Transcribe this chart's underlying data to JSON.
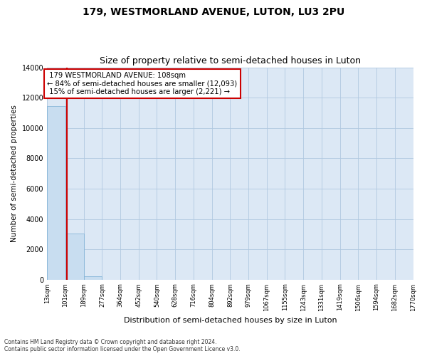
{
  "title": "179, WESTMORLAND AVENUE, LUTON, LU3 2PU",
  "subtitle": "Size of property relative to semi-detached houses in Luton",
  "xlabel": "Distribution of semi-detached houses by size in Luton",
  "ylabel": "Number of semi-detached properties",
  "footer_line1": "Contains HM Land Registry data © Crown copyright and database right 2024.",
  "footer_line2": "Contains public sector information licensed under the Open Government Licence v3.0.",
  "bin_edges": [
    13,
    101,
    189,
    277,
    364,
    452,
    540,
    628,
    716,
    804,
    892,
    979,
    1067,
    1155,
    1243,
    1331,
    1419,
    1506,
    1594,
    1682,
    1770
  ],
  "bar_heights": [
    11450,
    3050,
    200,
    0,
    0,
    0,
    0,
    0,
    0,
    0,
    0,
    0,
    0,
    0,
    0,
    0,
    0,
    0,
    0,
    0
  ],
  "bar_color": "#c8ddf0",
  "bar_edge_color": "#7aaed4",
  "property_size": 108,
  "property_label": "179 WESTMORLAND AVENUE: 108sqm",
  "pct_smaller": 84,
  "n_smaller": 12093,
  "pct_larger": 15,
  "n_larger": 2221,
  "vline_color": "#cc0000",
  "annotation_box_color": "#cc0000",
  "ylim": [
    0,
    14000
  ],
  "yticks": [
    0,
    2000,
    4000,
    6000,
    8000,
    10000,
    12000,
    14000
  ],
  "bg_color": "#dce8f5",
  "grid_color": "#c8d8e8",
  "title_fontsize": 10,
  "subtitle_fontsize": 9
}
